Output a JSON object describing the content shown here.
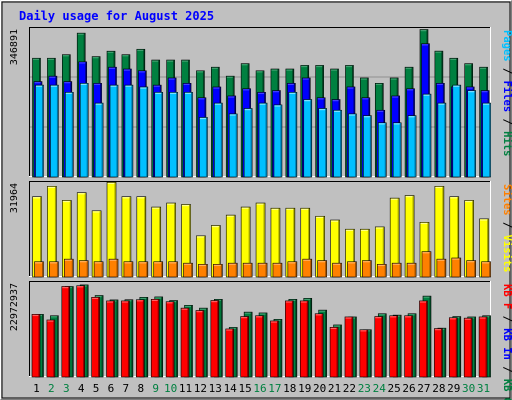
{
  "chart_data": {
    "type": "bar",
    "title": "Daily usage for August 2025",
    "categories": [
      "1",
      "2",
      "3",
      "4",
      "5",
      "6",
      "7",
      "8",
      "9",
      "10",
      "11",
      "12",
      "13",
      "14",
      "15",
      "16",
      "17",
      "18",
      "19",
      "20",
      "21",
      "22",
      "23",
      "24",
      "25",
      "26",
      "27",
      "28",
      "29",
      "30",
      "31"
    ],
    "weekend_days": [
      "2",
      "3",
      "9",
      "10",
      "16",
      "17",
      "23",
      "24",
      "30",
      "31"
    ],
    "colors": {
      "hits": "#008040",
      "files": "#0000ff",
      "pages": "#00c0ff",
      "visits": "#ffff00",
      "sites": "#ff8000",
      "kbin": "#008040",
      "kbout": "#ff0000",
      "title": "#0000ff",
      "weekday": "#000000",
      "weekend": "#008040",
      "plot_bg": "#c0c0c0"
    },
    "panels": [
      {
        "id": "usage",
        "max_label": "346891",
        "ymax": 346891,
        "right_label": [
          {
            "text": "Pages",
            "color": "#00c0ff"
          },
          {
            "text": " / ",
            "color": "#000000"
          },
          {
            "text": "Files",
            "color": "#0000ff"
          },
          {
            "text": " / ",
            "color": "#000000"
          },
          {
            "text": "Hits",
            "color": "#008040"
          }
        ],
        "series": [
          {
            "name": "Hits",
            "values": [
              282200,
              282200,
              290700,
              341800,
              286100,
              298900,
              290700,
              303500,
              277900,
              277900,
              277900,
              252400,
              260900,
              239600,
              269400,
              252400,
              256600,
              256600,
              265100,
              265100,
              256600,
              265100,
              235300,
              222600,
              235300,
              260900,
              350400,
              299100,
              282200,
              269400,
              260900
            ]
          },
          {
            "name": "Files",
            "values": [
              226800,
              239600,
              226800,
              273600,
              222600,
              260900,
              256600,
              252400,
              218300,
              235300,
              222600,
              188300,
              213900,
              192600,
              209700,
              201200,
              205400,
              222600,
              235300,
              188300,
              184100,
              214000,
              188300,
              158600,
              192600,
              209700,
              316600,
              222600,
              214000,
              214000,
              205400
            ]
          },
          {
            "name": "Pages",
            "values": [
              218300,
              218300,
              201200,
              222600,
              175600,
              218300,
              218300,
              213900,
              201200,
              201200,
              201200,
              141500,
              175600,
              149900,
              162800,
              175600,
              171300,
              201200,
              184100,
              162800,
              158600,
              149900,
              145800,
              128800,
              128800,
              145800,
              196900,
              175600,
              218300,
              205400,
              175600
            ]
          }
        ]
      },
      {
        "id": "visits",
        "max_label": "31964",
        "ymax": 31964,
        "right_label": [
          {
            "text": "Sites",
            "color": "#ff8000"
          },
          {
            "text": " / ",
            "color": "#000000"
          },
          {
            "text": "Visits",
            "color": "#ffff00"
          }
        ],
        "series": [
          {
            "name": "Visits",
            "values": [
              27900,
              31500,
              26600,
              29300,
              23000,
              32900,
              27900,
              27900,
              24300,
              25700,
              25200,
              14300,
              17900,
              21500,
              24300,
              25700,
              23900,
              23900,
              23900,
              21100,
              19800,
              16600,
              16600,
              17400,
              27400,
              28300,
              19000,
              31500,
              27900,
              26600,
              20200
            ]
          },
          {
            "name": "Sites",
            "values": [
              5300,
              5300,
              6200,
              5700,
              5300,
              6200,
              5300,
              5300,
              5300,
              5300,
              4800,
              4400,
              4400,
              4800,
              4800,
              4800,
              4800,
              5300,
              6200,
              5700,
              4800,
              5300,
              5700,
              4400,
              4800,
              4800,
              8800,
              6200,
              6600,
              5700,
              5300
            ]
          }
        ]
      },
      {
        "id": "kbytes",
        "max_label": "22972937",
        "ymax": 22972937,
        "right_label": [
          {
            "text": "KB F",
            "color": "#ff0000"
          },
          {
            "text": " / ",
            "color": "#000000"
          },
          {
            "text": "KB In",
            "color": "#0000ff"
          },
          {
            "text": " / ",
            "color": "#000000"
          },
          {
            "text": "KB Out",
            "color": "#008040"
          }
        ],
        "series": [
          {
            "name": "KB Out",
            "values": [
              15640000,
              15300000,
              22600000,
              23000000,
              20350000,
              19250000,
              19300000,
              19900000,
              20000000,
              19100000,
              17900000,
              17200000,
              19400000,
              12380000,
              16200000,
              16000000,
              14400000,
              19400000,
              19650000,
              16700000,
              13000000,
              15000000,
              11800000,
              15800000,
              15450000,
              15800000,
              20200000,
              12200000,
              15100000,
              15000000,
              15300000
            ]
          },
          {
            "name": "KB F",
            "values": [
              15640000,
              14240000,
              22600000,
              22800000,
              19900000,
              19000000,
              19000000,
              19300000,
              19400000,
              18800000,
              17200000,
              16600000,
              19100000,
              12000000,
              15100000,
              15300000,
              14000000,
              19000000,
              19000000,
              15800000,
              12400000,
              15000000,
              11800000,
              15100000,
              15300000,
              15300000,
              19000000,
              12100000,
              14800000,
              14700000,
              15000000
            ]
          }
        ]
      }
    ]
  }
}
